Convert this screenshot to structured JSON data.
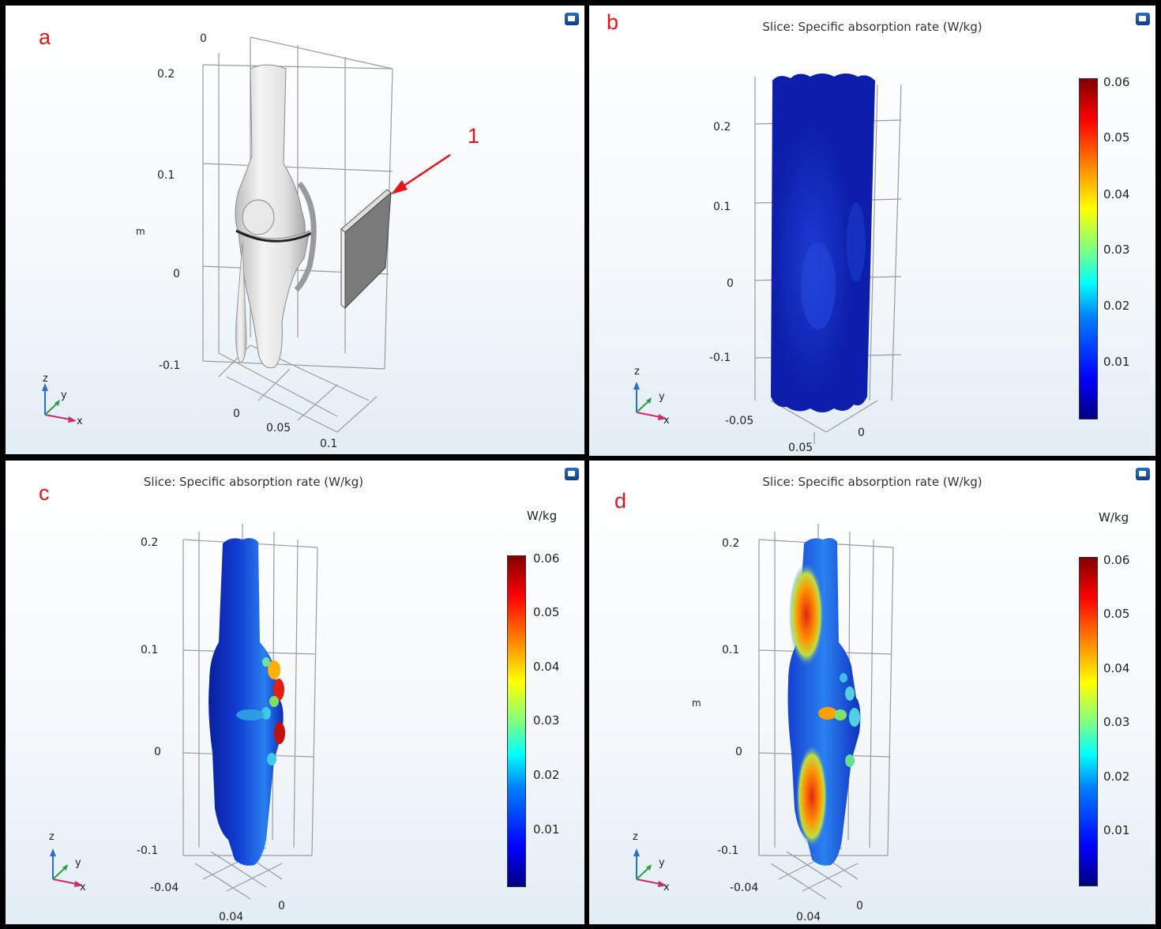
{
  "panels": {
    "a": {
      "label": "a",
      "callout": "1",
      "unit": "m",
      "z_ticks": [
        "0.2",
        "0.1",
        "0",
        "-0.1"
      ],
      "top_tick": "0",
      "y_ticks": [
        "0",
        "0.05",
        "0.1"
      ]
    },
    "b": {
      "label": "b",
      "title": "Slice: Specific absorption rate (W/kg)",
      "z_ticks": [
        "0.2",
        "0.1",
        "0",
        "-0.1"
      ],
      "x_ticks": [
        "-0.05",
        "0.05"
      ],
      "y_ticks": [
        "0"
      ],
      "colorbar_ticks": [
        "0.06",
        "0.05",
        "0.04",
        "0.03",
        "0.02",
        "0.01"
      ]
    },
    "c": {
      "label": "c",
      "title": "Slice: Specific absorption rate (W/kg)",
      "colorbar_unit": "W/kg",
      "z_ticks": [
        "0.2",
        "0.1",
        "0",
        "-0.1"
      ],
      "x_ticks": [
        "-0.04",
        "0.04"
      ],
      "y_ticks": [
        "0"
      ],
      "colorbar_ticks": [
        "0.06",
        "0.05",
        "0.04",
        "0.03",
        "0.02",
        "0.01"
      ]
    },
    "d": {
      "label": "d",
      "title": "Slice: Specific absorption rate (W/kg)",
      "colorbar_unit": "W/kg",
      "unit": "m",
      "z_ticks": [
        "0.2",
        "0.1",
        "0",
        "-0.1"
      ],
      "x_ticks": [
        "-0.04",
        "0.04"
      ],
      "y_ticks": [
        "0"
      ],
      "colorbar_ticks": [
        "0.06",
        "0.05",
        "0.04",
        "0.03",
        "0.02",
        "0.01"
      ]
    }
  },
  "axis_triad": {
    "z": "z",
    "y": "y",
    "x": "x"
  },
  "colors": {
    "label_red": "#e8141a",
    "cold": "#0a1fa8",
    "hot": "#c0120a"
  }
}
